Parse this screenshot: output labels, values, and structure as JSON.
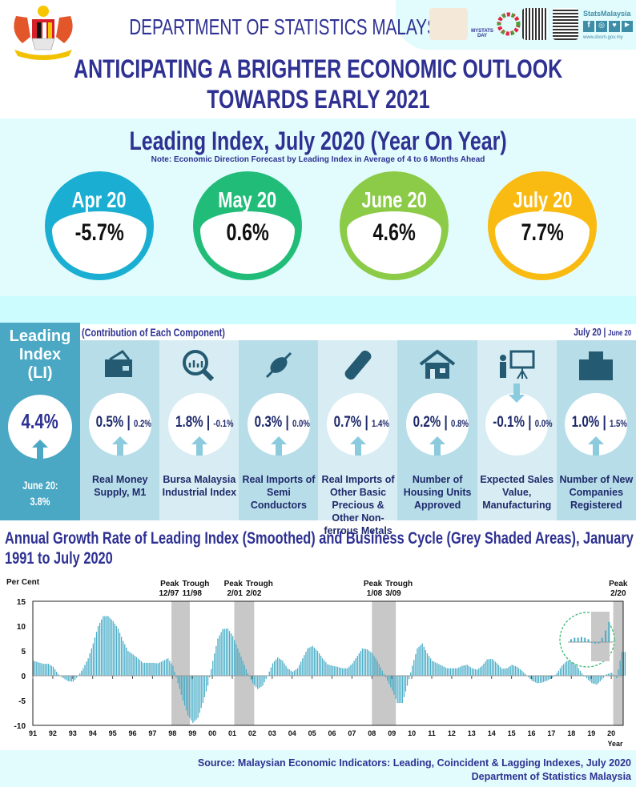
{
  "header": {
    "department": "DEPARTMENT OF STATISTICS MALAYSIA",
    "title_line1": "ANTICIPATING A BRIGHTER ECONOMIC OUTLOOK",
    "title_line2": "TOWARDS EARLY 2021",
    "social_brand": "StatsMalaysia",
    "website": "www.dosm.gov.my",
    "mystats_label": "MYSTATS DAY"
  },
  "leading_index": {
    "title": "Leading Index, July 2020 (Year On Year)",
    "note": "Note: Economic Direction Forecast by Leading Index in Average of 4 to 6 Months Ahead",
    "months": [
      {
        "label": "Apr 20",
        "value": "-5.7%",
        "color": "#1AAFD2"
      },
      {
        "label": "May 20",
        "value": "0.6%",
        "color": "#21BD78"
      },
      {
        "label": "June 20",
        "value": "4.6%",
        "color": "#8CCB48"
      },
      {
        "label": "July 20",
        "value": "7.7%",
        "color": "#F9BA12"
      }
    ]
  },
  "components": {
    "title": "(Contribution of Each Component)",
    "period_current": "July 20",
    "period_sep": "|",
    "period_previous": "June 20",
    "li": {
      "title_line1": "Leading",
      "title_line2": "Index",
      "title_line3": "(LI)",
      "value": "4.4%",
      "prev_label": "June 20:",
      "prev_value": "3.8%"
    },
    "items": [
      {
        "name": "Real Money Supply, M1",
        "current": "0.5%",
        "previous": "0.2%",
        "direction": "up",
        "icon": "wallet-icon"
      },
      {
        "name": "Bursa Malaysia Industrial Index",
        "current": "1.8%",
        "previous": "-0.1%",
        "direction": "up",
        "icon": "magnifier-chart-icon"
      },
      {
        "name": "Real Imports of Semi Conductors",
        "current": "0.3%",
        "previous": "0.0%",
        "direction": "up",
        "icon": "chip-icon"
      },
      {
        "name": "Real Imports of Other Basic Precious & Other Non-ferrous Metals",
        "current": "0.7%",
        "previous": "1.4%",
        "direction": "up",
        "icon": "metal-bar-icon"
      },
      {
        "name": "Number of Housing Units Approved",
        "current": "0.2%",
        "previous": "0.8%",
        "direction": "up",
        "icon": "house-icon"
      },
      {
        "name": "Expected Sales Value, Manufacturing",
        "current": "-0.1%",
        "previous": "0.0%",
        "direction": "down",
        "icon": "presentation-icon"
      },
      {
        "name": "Number of New Companies Registered",
        "current": "1.0%",
        "previous": "1.5%",
        "direction": "up",
        "icon": "buildings-icon"
      }
    ]
  },
  "chart_data": {
    "type": "bar",
    "title": "Annual Growth Rate of Leading Index (Smoothed) and Business Cycle (Grey Shaded Areas), January 1991 to July 2020",
    "ylabel": "Per Cent",
    "xlabel": "Year",
    "ylim": [
      -10,
      15
    ],
    "yticks": [
      15,
      10,
      5,
      0,
      -5,
      -10
    ],
    "xticks": [
      "91",
      "92",
      "93",
      "94",
      "95",
      "96",
      "97",
      "98",
      "99",
      "00",
      "01",
      "02",
      "03",
      "04",
      "05",
      "06",
      "07",
      "08",
      "09",
      "10",
      "11",
      "12",
      "13",
      "14",
      "15",
      "16",
      "17",
      "18",
      "19",
      "20"
    ],
    "x_start": 1991,
    "frequency": "quarterly (approx.)",
    "grid": false,
    "series": [
      {
        "name": "Leading Index growth (smoothed)",
        "color": "#4BAEC8",
        "values": [
          3,
          2.7,
          2.4,
          2.4,
          1.8,
          0.3,
          -0.5,
          -1.1,
          -1.2,
          0,
          1.5,
          3.5,
          6.5,
          10,
          12,
          12,
          11,
          9.5,
          7,
          5,
          4.3,
          3.5,
          2.6,
          2.6,
          2.6,
          2.5,
          3,
          3.5,
          2,
          -1.5,
          -5,
          -8,
          -9.5,
          -8.5,
          -5.5,
          -2,
          3,
          7.5,
          9.4,
          9.5,
          8,
          5.5,
          3,
          0.5,
          -1.5,
          -2.7,
          -2,
          0,
          2.5,
          3.7,
          3,
          1.5,
          0.8,
          1.5,
          3.5,
          5.5,
          6,
          5,
          3.5,
          2.3,
          2,
          1.8,
          1.5,
          1.5,
          2.5,
          4,
          5.5,
          5.3,
          4.5,
          3,
          1,
          -1,
          -3,
          -5.5,
          -5.5,
          -2,
          2,
          5.5,
          6.5,
          4.5,
          3,
          2.5,
          2,
          1.5,
          1.5,
          1.5,
          2,
          2.2,
          1.5,
          1.2,
          2,
          3.3,
          3.4,
          2.5,
          1.4,
          1.5,
          2.2,
          1.8,
          1,
          0,
          -1,
          -1.5,
          -1.4,
          -1,
          -0.5,
          0.5,
          2,
          3,
          3,
          2,
          0.5,
          -0.5,
          -1.5,
          -1.8,
          -0.8,
          0.3,
          0.6,
          -0.5,
          4.8
        ]
      }
    ],
    "shaded_periods": [
      {
        "peak_label": "Peak",
        "peak": "12/97",
        "trough_label": "Trough",
        "trough": "11/98",
        "start": 1997.95,
        "end": 1998.87
      },
      {
        "peak_label": "Peak",
        "peak": "2/01",
        "trough_label": "Trough",
        "trough": "2/02",
        "start": 2001.1,
        "end": 2002.1
      },
      {
        "peak_label": "Peak",
        "peak": "1/08",
        "trough_label": "Trough",
        "trough": "3/09",
        "start": 2008.0,
        "end": 2009.2
      },
      {
        "peak_label": "Peak",
        "peak": "2/20",
        "trough_label": "",
        "trough": "",
        "start": 2020.1,
        "end": 2020.6
      }
    ]
  },
  "source": {
    "line1": "Source:  Malaysian Economic Indicators: Leading, Coincident & Lagging Indexes, July 2020",
    "line2": "Department of Statistics Malaysia"
  }
}
